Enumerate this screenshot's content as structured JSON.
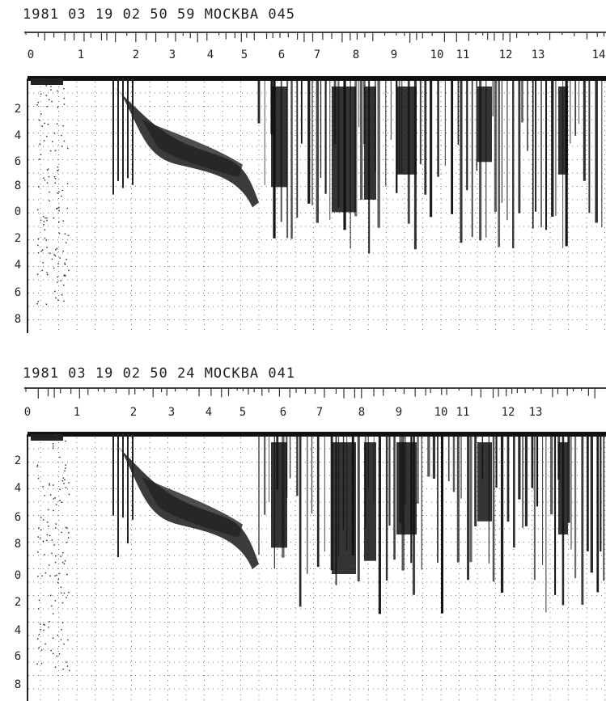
{
  "panels": [
    {
      "header": "1981 03 19 02 50 59 МОСКВА 045",
      "x_labels": [
        "0",
        "1",
        "2",
        "3",
        "4",
        "5",
        "6",
        "7",
        "8",
        "9",
        "10",
        "11",
        "12",
        "13",
        "14"
      ],
      "y_labels": [
        "2",
        "4",
        "6",
        "8",
        "0",
        "2",
        "4",
        "6",
        "8"
      ]
    },
    {
      "header": "1981 03 19 02 50 24 МОСКВА 041",
      "x_labels": [
        "0",
        "1",
        "2",
        "3",
        "4",
        "5",
        "6",
        "7",
        "8",
        "9",
        "10",
        "11",
        "12",
        "13"
      ],
      "y_labels": [
        "2",
        "4",
        "6",
        "8",
        "0",
        "2",
        "4",
        "6",
        "8"
      ]
    }
  ]
}
